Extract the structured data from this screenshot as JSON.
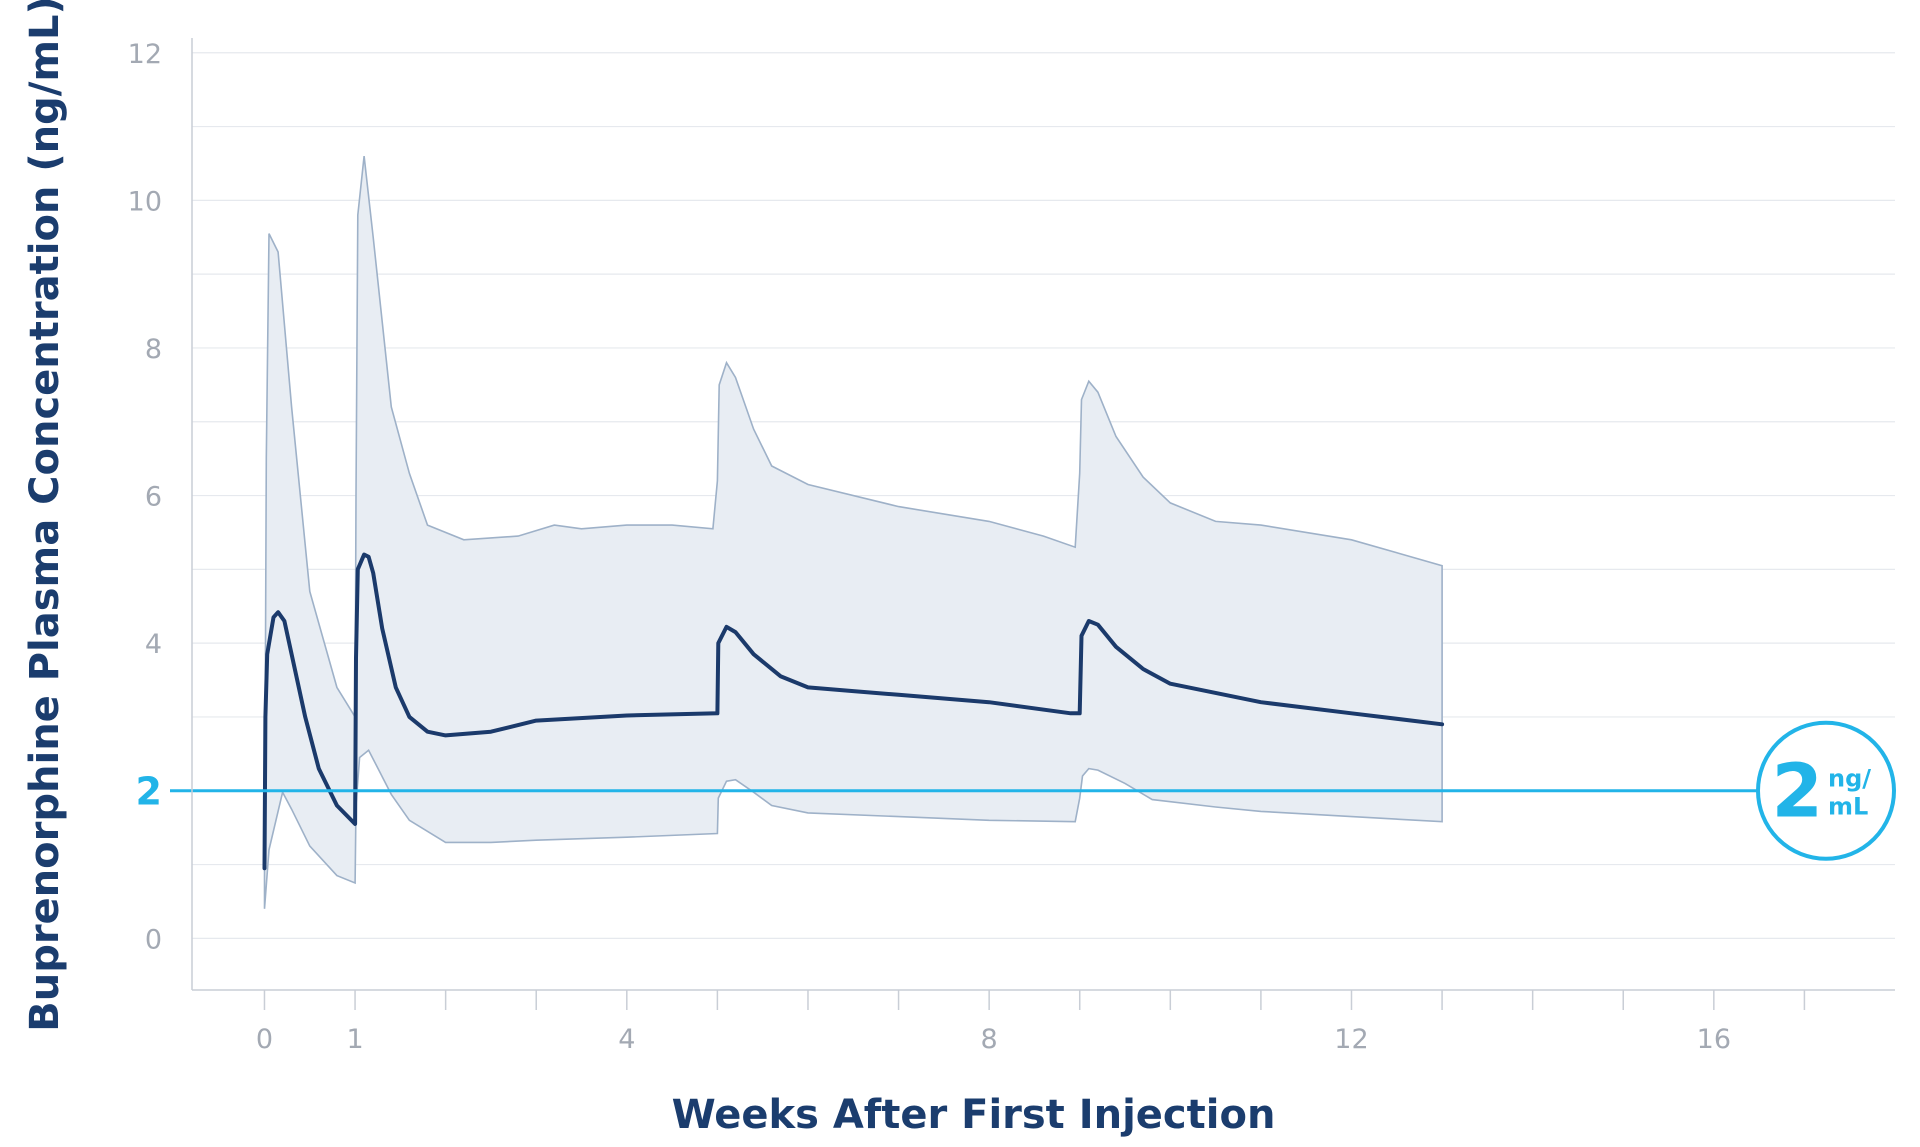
{
  "chart_data": {
    "type": "area",
    "title": "",
    "xlabel": "Weeks After First Injection",
    "ylabel": "Buprenorphine Plasma Concentration (ng/mL)",
    "xlim": [
      -0.8,
      18
    ],
    "ylim": [
      -0.7,
      12.2
    ],
    "xticks": [
      0,
      1,
      4,
      8,
      12,
      16
    ],
    "xtick_labels": [
      "0",
      "1",
      "4",
      "8",
      "12",
      "16"
    ],
    "yticks": [
      0,
      2,
      4,
      6,
      8,
      10,
      12
    ],
    "ytick_labels": [
      "0",
      "",
      "4",
      "6",
      "8",
      "10",
      "12"
    ],
    "grid": true,
    "reference_line": {
      "y": 2,
      "axis_label": "2",
      "badge_value": "2",
      "badge_unit_top": "ng/",
      "badge_unit_bottom": "mL"
    },
    "series": [
      {
        "role": "median",
        "x": [
          0,
          0.01,
          0.03,
          0.1,
          0.15,
          0.22,
          0.3,
          0.45,
          0.6,
          0.8,
          1.0,
          1.01,
          1.03,
          1.1,
          1.15,
          1.2,
          1.3,
          1.45,
          1.6,
          1.8,
          2.0,
          2.5,
          3.0,
          4.0,
          5.0,
          5.01,
          5.1,
          5.2,
          5.4,
          5.7,
          6.0,
          6.5,
          7.0,
          8.0,
          8.9,
          9.0,
          9.02,
          9.1,
          9.2,
          9.4,
          9.7,
          10.0,
          11.0,
          12.0,
          13.0
        ],
        "y": [
          0.95,
          3.0,
          3.85,
          4.35,
          4.42,
          4.3,
          3.85,
          3.0,
          2.3,
          1.8,
          1.55,
          3.8,
          5.0,
          5.2,
          5.17,
          4.95,
          4.2,
          3.4,
          3.0,
          2.8,
          2.75,
          2.8,
          2.95,
          3.02,
          3.05,
          4.0,
          4.22,
          4.15,
          3.85,
          3.55,
          3.4,
          3.35,
          3.3,
          3.2,
          3.05,
          3.05,
          4.1,
          4.3,
          4.25,
          3.95,
          3.65,
          3.45,
          3.2,
          3.05,
          2.9
        ]
      },
      {
        "role": "upper-bound",
        "x": [
          0,
          0.02,
          0.05,
          0.15,
          0.3,
          0.5,
          0.8,
          1.0,
          1.01,
          1.03,
          1.1,
          1.2,
          1.4,
          1.6,
          1.8,
          2.2,
          2.8,
          3.2,
          3.5,
          4.0,
          4.5,
          4.95,
          5.0,
          5.02,
          5.1,
          5.2,
          5.4,
          5.6,
          6.0,
          7.0,
          8.0,
          8.6,
          8.95,
          9.0,
          9.02,
          9.1,
          9.2,
          9.4,
          9.7,
          10.0,
          10.5,
          11.0,
          12.0,
          13.0
        ],
        "y": [
          0.8,
          6.5,
          9.55,
          9.3,
          7.2,
          4.7,
          3.4,
          3.0,
          6.0,
          9.8,
          10.6,
          9.5,
          7.2,
          6.3,
          5.6,
          5.4,
          5.45,
          5.6,
          5.55,
          5.6,
          5.6,
          5.55,
          6.2,
          7.5,
          7.8,
          7.6,
          6.9,
          6.4,
          6.15,
          5.85,
          5.65,
          5.45,
          5.3,
          6.3,
          7.3,
          7.55,
          7.4,
          6.8,
          6.25,
          5.9,
          5.65,
          5.6,
          5.4,
          5.05
        ]
      },
      {
        "role": "lower-bound",
        "x": [
          0,
          0.05,
          0.2,
          0.3,
          0.5,
          0.8,
          1.0,
          1.01,
          1.05,
          1.15,
          1.4,
          1.6,
          2.0,
          2.5,
          3.0,
          4.0,
          5.0,
          5.01,
          5.1,
          5.2,
          5.4,
          5.6,
          6.0,
          7.0,
          8.0,
          8.95,
          9.0,
          9.03,
          9.1,
          9.2,
          9.5,
          9.8,
          10.5,
          11.0,
          12.0,
          13.0
        ],
        "y": [
          0.4,
          1.2,
          1.98,
          1.75,
          1.25,
          0.85,
          0.75,
          1.8,
          2.45,
          2.55,
          1.95,
          1.6,
          1.3,
          1.3,
          1.33,
          1.37,
          1.42,
          1.9,
          2.13,
          2.15,
          1.98,
          1.8,
          1.7,
          1.65,
          1.6,
          1.58,
          1.9,
          2.2,
          2.3,
          2.28,
          2.1,
          1.88,
          1.78,
          1.72,
          1.65,
          1.58
        ]
      }
    ]
  }
}
